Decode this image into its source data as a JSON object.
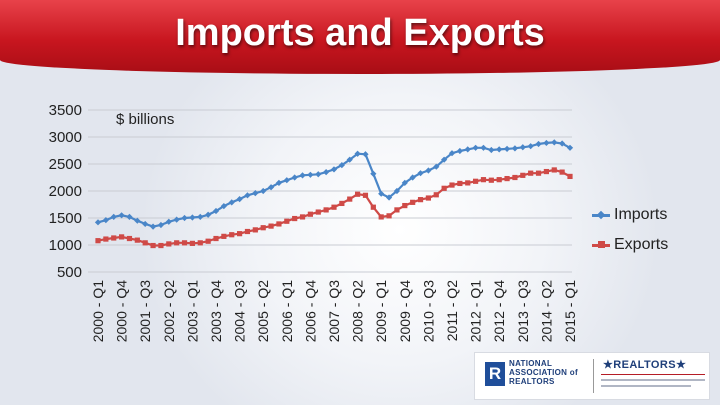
{
  "title": "Imports and Exports",
  "colors": {
    "banner": "#c8161f",
    "imports": "#4a86c8",
    "exports": "#cf4a47",
    "grid": "#c9ccd3"
  },
  "chart_data": {
    "type": "line",
    "unit_label": "$ billions",
    "ylim": [
      500,
      3500
    ],
    "yticks": [
      500,
      1000,
      1500,
      2000,
      2500,
      3000,
      3500
    ],
    "grid": true,
    "legend_position": "right",
    "categories": [
      "2000 - Q1",
      "2000 - Q2",
      "2000 - Q3",
      "2000 - Q4",
      "2001 - Q1",
      "2001 - Q2",
      "2001 - Q3",
      "2001 - Q4",
      "2002 - Q1",
      "2002 - Q2",
      "2002 - Q3",
      "2002 - Q4",
      "2003 - Q1",
      "2003 - Q2",
      "2003 - Q3",
      "2003 - Q4",
      "2004 - Q1",
      "2004 - Q2",
      "2004 - Q3",
      "2004 - Q4",
      "2005 - Q1",
      "2005 - Q2",
      "2005 - Q3",
      "2005 - Q4",
      "2006 - Q1",
      "2006 - Q2",
      "2006 - Q3",
      "2006 - Q4",
      "2007 - Q1",
      "2007 - Q2",
      "2007 - Q3",
      "2007 - Q4",
      "2008 - Q1",
      "2008 - Q2",
      "2008 - Q3",
      "2008 - Q4",
      "2009 - Q1",
      "2009 - Q2",
      "2009 - Q3",
      "2009 - Q4",
      "2010 - Q1",
      "2010 - Q2",
      "2010 - Q3",
      "2010 - Q4",
      "2011 - Q1",
      "2011 - Q2",
      "2011 - Q3",
      "2011 - Q4",
      "2012 - Q1",
      "2012 - Q2",
      "2012 - Q3",
      "2012 - Q4",
      "2013 - Q1",
      "2013 - Q2",
      "2013 - Q3",
      "2013 - Q4",
      "2014 - Q1",
      "2014 - Q2",
      "2014 - Q3",
      "2014 - Q4",
      "2015 - Q1"
    ],
    "xtick_labels": [
      "2000 - Q1",
      "2000 - Q4",
      "2001 - Q3",
      "2002 - Q2",
      "2003 - Q1",
      "2003 - Q4",
      "2004 - Q3",
      "2005 - Q2",
      "2006 - Q1",
      "2006 - Q4",
      "2007 - Q3",
      "2008 - Q2",
      "2009 - Q1",
      "2009 - Q4",
      "2010 - Q3",
      "2011 - Q2",
      "2012 - Q1",
      "2012 - Q4",
      "2013 - Q3",
      "2014 - Q2",
      "2015 - Q1"
    ],
    "series": [
      {
        "name": "Imports",
        "marker": "diamond",
        "values": [
          1420,
          1460,
          1520,
          1550,
          1520,
          1450,
          1390,
          1340,
          1370,
          1430,
          1470,
          1500,
          1510,
          1520,
          1560,
          1630,
          1720,
          1790,
          1850,
          1920,
          1960,
          2000,
          2070,
          2150,
          2200,
          2250,
          2290,
          2300,
          2310,
          2350,
          2400,
          2480,
          2580,
          2690,
          2680,
          2320,
          1950,
          1880,
          2000,
          2150,
          2250,
          2330,
          2380,
          2450,
          2580,
          2700,
          2740,
          2770,
          2800,
          2800,
          2760,
          2770,
          2780,
          2790,
          2810,
          2830,
          2870,
          2890,
          2900,
          2880,
          2800
        ]
      },
      {
        "name": "Exports",
        "marker": "square",
        "values": [
          1080,
          1110,
          1130,
          1150,
          1120,
          1090,
          1040,
          990,
          990,
          1020,
          1040,
          1040,
          1030,
          1040,
          1070,
          1120,
          1160,
          1190,
          1210,
          1250,
          1280,
          1320,
          1350,
          1390,
          1440,
          1490,
          1520,
          1570,
          1610,
          1650,
          1700,
          1770,
          1850,
          1940,
          1920,
          1700,
          1520,
          1540,
          1650,
          1730,
          1790,
          1840,
          1870,
          1930,
          2050,
          2110,
          2140,
          2150,
          2180,
          2210,
          2200,
          2210,
          2230,
          2250,
          2290,
          2330,
          2330,
          2360,
          2390,
          2350,
          2270
        ]
      }
    ]
  },
  "logos": {
    "nar_text": "NATIONAL ASSOCIATION of REALTORS",
    "nar_mark": "R",
    "realtors_text": "★REALTORS★"
  }
}
